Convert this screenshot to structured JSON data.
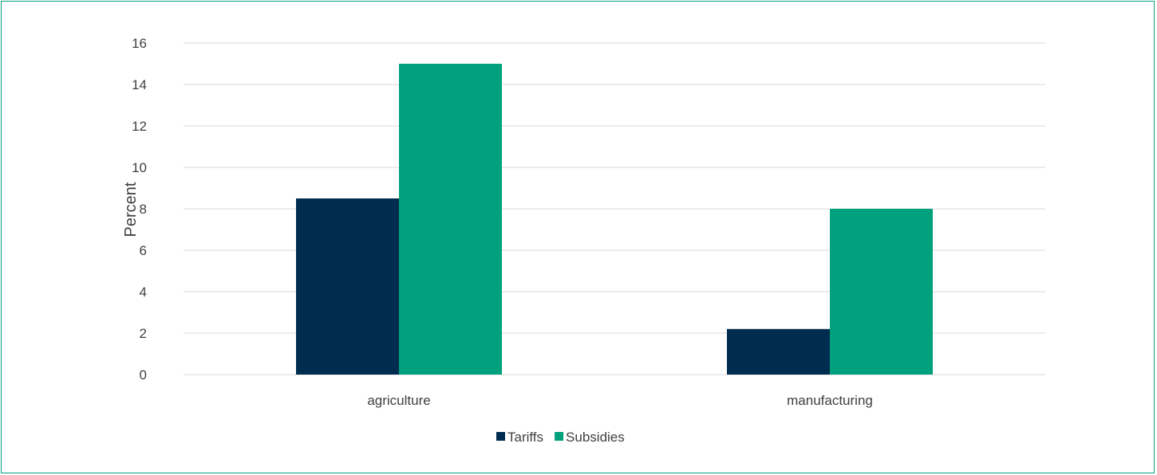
{
  "chart_data": {
    "type": "bar",
    "categories": [
      "agriculture",
      "manufacturing"
    ],
    "series": [
      {
        "name": "Tariffs",
        "values": [
          8.5,
          2.2
        ],
        "color": "#002d4f"
      },
      {
        "name": "Subsidies",
        "values": [
          15.0,
          8.0
        ],
        "color": "#00a17c"
      }
    ],
    "title": "",
    "xlabel": "",
    "ylabel": "Percent",
    "ylim": [
      0,
      16
    ],
    "yticks": [
      0,
      2,
      4,
      6,
      8,
      10,
      12,
      14,
      16
    ],
    "grid": true,
    "legend_position": "bottom"
  },
  "colors": {
    "border": "#00a17c",
    "grid": "#d9d9d9",
    "text": "#404040"
  }
}
